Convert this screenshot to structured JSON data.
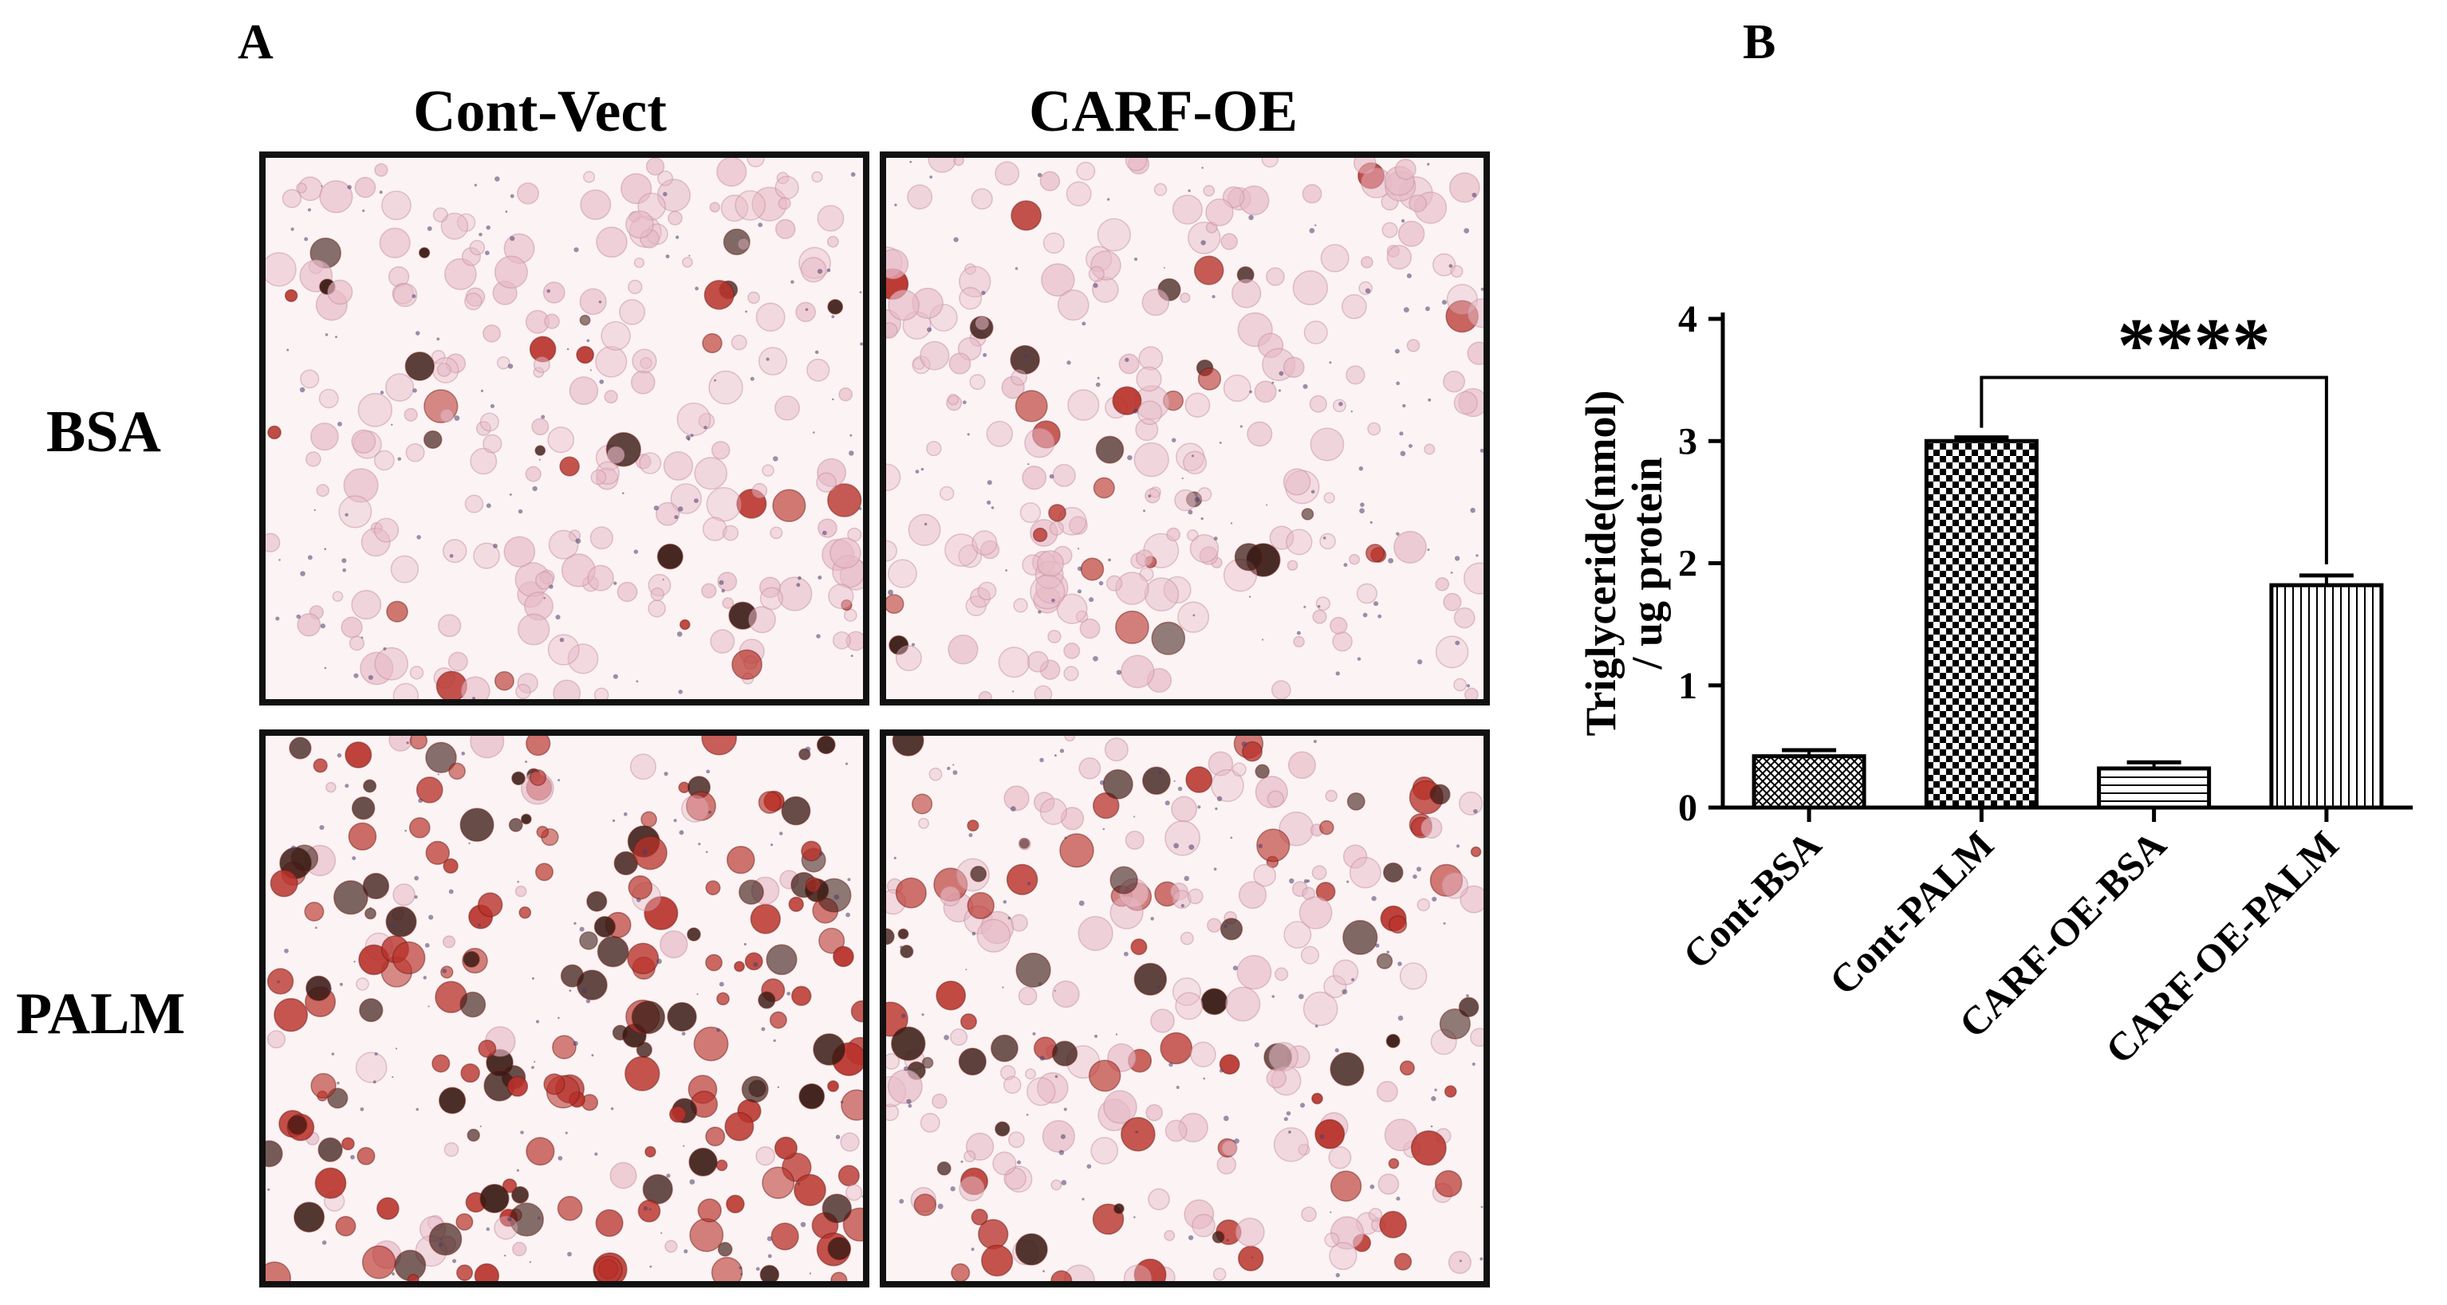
{
  "panel_a": {
    "letter": "A",
    "columns": [
      "Cont-Vect",
      "CARF-OE"
    ],
    "rows": [
      "BSA",
      "PALM"
    ],
    "images": [
      {
        "name": "micrograph-bsa-cont-vect",
        "stain_intensity": "low"
      },
      {
        "name": "micrograph-bsa-carf-oe",
        "stain_intensity": "low"
      },
      {
        "name": "micrograph-palm-cont-vect",
        "stain_intensity": "high"
      },
      {
        "name": "micrograph-palm-carf-oe",
        "stain_intensity": "medium"
      }
    ]
  },
  "panel_b": {
    "letter": "B"
  },
  "chart_data": {
    "type": "bar",
    "categories": [
      "Cont-BSA",
      "Cont-PALM",
      "CARF-OE-BSA",
      "CARF-OE-PALM"
    ],
    "values": [
      0.42,
      3.0,
      0.32,
      1.82
    ],
    "errors": [
      0.05,
      0.03,
      0.05,
      0.08
    ],
    "patterns": [
      "crosshatch",
      "checkerboard",
      "horizontal-lines",
      "vertical-lines"
    ],
    "ylabel": "Triglyceride(nmol)\n/ ug protein",
    "ylim": [
      0,
      4
    ],
    "yticks": [
      0,
      1,
      2,
      3,
      4
    ],
    "significance": {
      "from": 1,
      "to": 3,
      "label": "****"
    },
    "grid": false
  },
  "colors": {
    "stain_red": "#b8322a",
    "stain_dark": "#3a1a14",
    "background_pink": "#fbf3f4",
    "cell_pink": "#e6b9c6"
  }
}
